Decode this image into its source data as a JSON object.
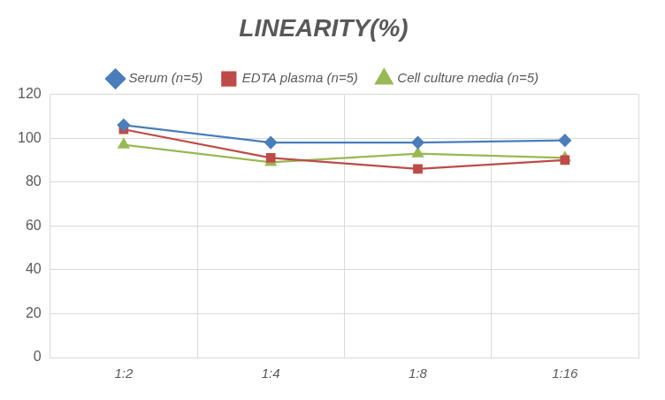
{
  "chart_data": {
    "type": "line",
    "title": "LINEARITY(%)",
    "categories": [
      "1:2",
      "1:4",
      "1:8",
      "1:16"
    ],
    "series": [
      {
        "name": "Serum (n=5)",
        "color": "#4a7ebb",
        "marker": "diamond",
        "values": [
          106,
          98,
          98,
          99
        ]
      },
      {
        "name": "EDTA plasma (n=5)",
        "color": "#be4b48",
        "marker": "square",
        "values": [
          104,
          91,
          86,
          90
        ]
      },
      {
        "name": "Cell culture media (n=5)",
        "color": "#98b954",
        "marker": "triangle",
        "values": [
          97,
          89,
          93,
          91
        ]
      }
    ],
    "ylim": [
      0,
      120
    ],
    "yticks": [
      0,
      20,
      40,
      60,
      80,
      100,
      120
    ],
    "grid": true,
    "legend": "top"
  }
}
